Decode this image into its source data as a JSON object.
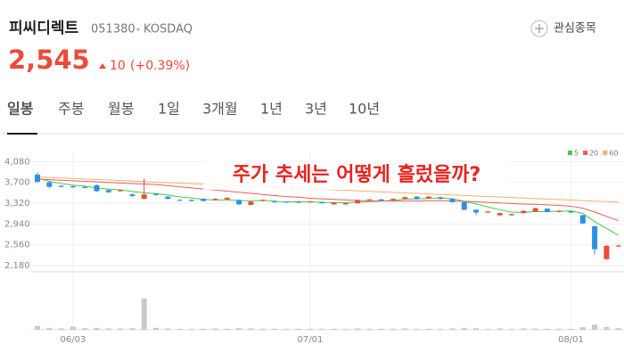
{
  "header": {
    "name": "피씨디렉트",
    "code": "051380",
    "market": "KOSDAQ",
    "watch": "관심종목"
  },
  "price": {
    "value": "2,545",
    "change": "10",
    "change_pct": "(+0.39%)"
  },
  "tabs": [
    "일봉",
    "주봉",
    "월봉",
    "1일",
    "3개월",
    "1년",
    "3년",
    "10년"
  ],
  "chart_data": {
    "type": "candlestick",
    "annotation": "주가 추세는 어떻게 흘렀을까?",
    "up_color": "#ec4a3a",
    "down_color": "#2f8fe6",
    "volume_color": "#c9c9c9",
    "categories": [
      null,
      null,
      null,
      "06/03",
      null,
      null,
      null,
      null,
      null,
      null,
      null,
      null,
      null,
      null,
      null,
      null,
      null,
      null,
      null,
      null,
      null,
      null,
      null,
      "07/01",
      null,
      null,
      null,
      null,
      null,
      null,
      null,
      null,
      null,
      null,
      null,
      null,
      null,
      null,
      null,
      null,
      null,
      null,
      null,
      null,
      null,
      "08/01",
      null,
      null,
      null,
      null
    ],
    "open": [
      3840,
      3700,
      3640,
      3630,
      3620,
      3650,
      3560,
      3540,
      3480,
      3400,
      3490,
      3440,
      3380,
      3380,
      3400,
      3380,
      3390,
      3380,
      3290,
      3360,
      3360,
      3350,
      3350,
      3340,
      3340,
      3300,
      3300,
      3320,
      3380,
      3390,
      3380,
      3400,
      3440,
      3410,
      3430,
      3400,
      3340,
      3200,
      3150,
      3100,
      3100,
      3140,
      3170,
      3220,
      3160,
      3170,
      3100,
      2900,
      2300,
      2530
    ],
    "high": [
      3880,
      3720,
      3650,
      3640,
      3630,
      3660,
      3580,
      3570,
      3500,
      3770,
      3500,
      3450,
      3390,
      3390,
      3410,
      3410,
      3430,
      3390,
      3360,
      3390,
      3370,
      3360,
      3360,
      3360,
      3350,
      3340,
      3330,
      3390,
      3400,
      3400,
      3410,
      3440,
      3450,
      3450,
      3440,
      3410,
      3350,
      3210,
      3180,
      3150,
      3130,
      3190,
      3240,
      3230,
      3190,
      3180,
      3110,
      2910,
      2560,
      2570
    ],
    "low": [
      3700,
      3600,
      3610,
      3600,
      3590,
      3530,
      3510,
      3530,
      3440,
      3390,
      3460,
      3390,
      3360,
      3350,
      3350,
      3370,
      3380,
      3290,
      3280,
      3350,
      3330,
      3330,
      3320,
      3330,
      3310,
      3290,
      3290,
      3310,
      3370,
      3360,
      3370,
      3390,
      3390,
      3400,
      3390,
      3330,
      3190,
      3100,
      3140,
      3090,
      3090,
      3130,
      3160,
      3150,
      3150,
      3140,
      2940,
      2380,
      2290,
      2520
    ],
    "close": [
      3710,
      3620,
      3620,
      3610,
      3600,
      3540,
      3520,
      3560,
      3450,
      3480,
      3470,
      3400,
      3370,
      3360,
      3360,
      3400,
      3420,
      3300,
      3350,
      3380,
      3340,
      3340,
      3330,
      3350,
      3320,
      3330,
      3320,
      3380,
      3390,
      3370,
      3400,
      3430,
      3400,
      3440,
      3400,
      3340,
      3200,
      3150,
      3170,
      3140,
      3120,
      3180,
      3230,
      3160,
      3180,
      3150,
      2950,
      2480,
      2540,
      2545
    ],
    "volume": [
      1.2,
      0.6,
      0.4,
      1.0,
      0.5,
      0.6,
      0.4,
      0.4,
      0.5,
      10,
      0.6,
      0.4,
      0.3,
      0.3,
      0.3,
      0.4,
      0.3,
      0.5,
      0.4,
      0.3,
      0.3,
      0.3,
      0.3,
      0.3,
      0.3,
      0.3,
      0.3,
      0.4,
      0.3,
      0.3,
      0.3,
      0.4,
      0.3,
      0.3,
      0.3,
      0.4,
      0.6,
      0.5,
      0.3,
      0.4,
      0.3,
      0.4,
      0.4,
      0.3,
      0.3,
      0.3,
      0.8,
      1.6,
      0.9,
      0.5
    ],
    "series": [
      {
        "name": "5",
        "color": "#3fcf3f",
        "values": [
          3780,
          3720,
          3680,
          3650,
          3632,
          3598,
          3578,
          3566,
          3534,
          3510,
          3496,
          3472,
          3434,
          3416,
          3392,
          3378,
          3382,
          3368,
          3366,
          3370,
          3358,
          3342,
          3348,
          3348,
          3336,
          3334,
          3330,
          3340,
          3348,
          3358,
          3372,
          3394,
          3398,
          3408,
          3414,
          3402,
          3356,
          3306,
          3252,
          3200,
          3156,
          3152,
          3168,
          3166,
          3174,
          3180,
          3134,
          2984,
          2860,
          2733
        ]
      },
      {
        "name": "20",
        "color": "#f05a5a",
        "values": [
          3760,
          3750,
          3740,
          3730,
          3720,
          3710,
          3700,
          3690,
          3680,
          3670,
          3660,
          3640,
          3620,
          3600,
          3580,
          3560,
          3540,
          3520,
          3500,
          3480,
          3460,
          3440,
          3430,
          3410,
          3400,
          3390,
          3380,
          3370,
          3365,
          3360,
          3360,
          3360,
          3360,
          3365,
          3365,
          3360,
          3355,
          3345,
          3335,
          3325,
          3315,
          3305,
          3300,
          3290,
          3280,
          3265,
          3230,
          3160,
          3080,
          3000
        ]
      },
      {
        "name": "60",
        "color": "#f6b06a",
        "values": [
          3800,
          3791,
          3781,
          3772,
          3762,
          3753,
          3744,
          3734,
          3725,
          3715,
          3706,
          3697,
          3687,
          3678,
          3668,
          3659,
          3650,
          3640,
          3631,
          3621,
          3612,
          3603,
          3593,
          3584,
          3574,
          3565,
          3556,
          3546,
          3537,
          3527,
          3518,
          3509,
          3499,
          3490,
          3480,
          3471,
          3462,
          3452,
          3443,
          3433,
          3424,
          3415,
          3405,
          3396,
          3386,
          3377,
          3368,
          3358,
          3349,
          3339
        ]
      }
    ],
    "ylim": [
      2100,
      4200
    ],
    "yticks": [
      {
        "value": 2180,
        "label": "2,180"
      },
      {
        "value": 2560,
        "label": "2,560"
      },
      {
        "value": 2940,
        "label": "2,940"
      },
      {
        "value": 3320,
        "label": "3,320"
      },
      {
        "value": 3700,
        "label": "3,700"
      },
      {
        "value": 4080,
        "label": "4,080"
      }
    ],
    "grid": true
  }
}
